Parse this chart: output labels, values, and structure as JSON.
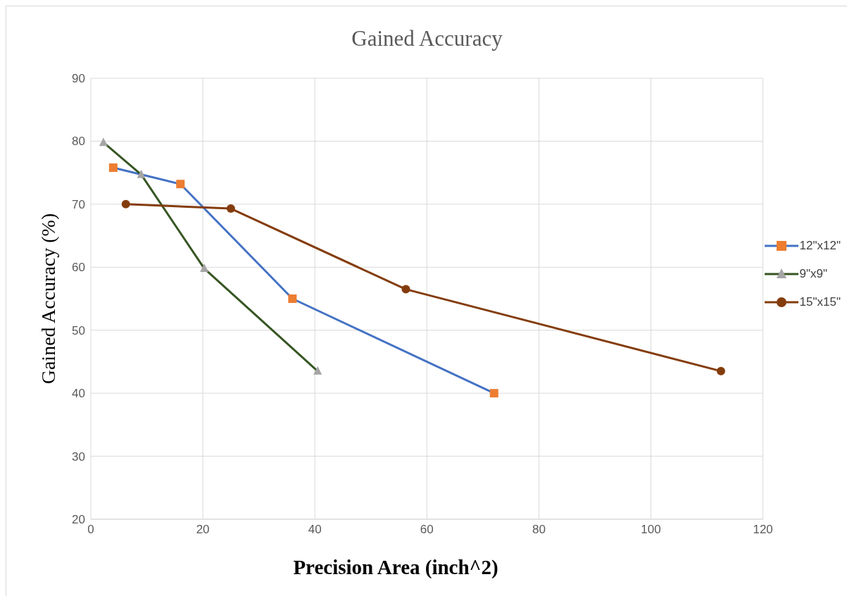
{
  "chart_data": {
    "type": "line",
    "title": "Gained Accuracy",
    "xlabel": "Precision Area (inch^2)",
    "ylabel": "Gained Accuracy (%)",
    "xlim": [
      0,
      120
    ],
    "xticks": [
      0,
      20,
      40,
      60,
      80,
      100,
      120
    ],
    "ylim": [
      20,
      90
    ],
    "yticks": [
      20,
      30,
      40,
      50,
      60,
      70,
      80,
      90
    ],
    "grid": true,
    "legend": "right",
    "line_style": "solid",
    "series": [
      {
        "name": "12\"x12\"",
        "color": "#4472c4",
        "colors": [
          "#ed7d31",
          "#ed7d31",
          "#ed7d31",
          "#ed7d31"
        ],
        "marker": "square",
        "x": [
          4,
          16,
          36,
          72
        ],
        "values": [
          75.8,
          73.2,
          55,
          40
        ]
      },
      {
        "name": "9\"x9\"",
        "color": "#375623",
        "colors": [
          "#a5a5a5",
          "#a5a5a5",
          "#a5a5a5",
          "#a5a5a5"
        ],
        "marker": "triangle",
        "x": [
          2.25,
          9,
          20.25,
          40.5
        ],
        "values": [
          79.8,
          74.7,
          59.8,
          43.5
        ]
      },
      {
        "name": "15\"x15\"",
        "color": "#843c0c",
        "colors": [
          "#843c0c",
          "#843c0c",
          "#843c0c",
          "#843c0c"
        ],
        "marker": "circle",
        "x": [
          6.25,
          25,
          56.25,
          112.5
        ],
        "values": [
          70,
          69.3,
          56.5,
          43.5
        ]
      }
    ]
  }
}
